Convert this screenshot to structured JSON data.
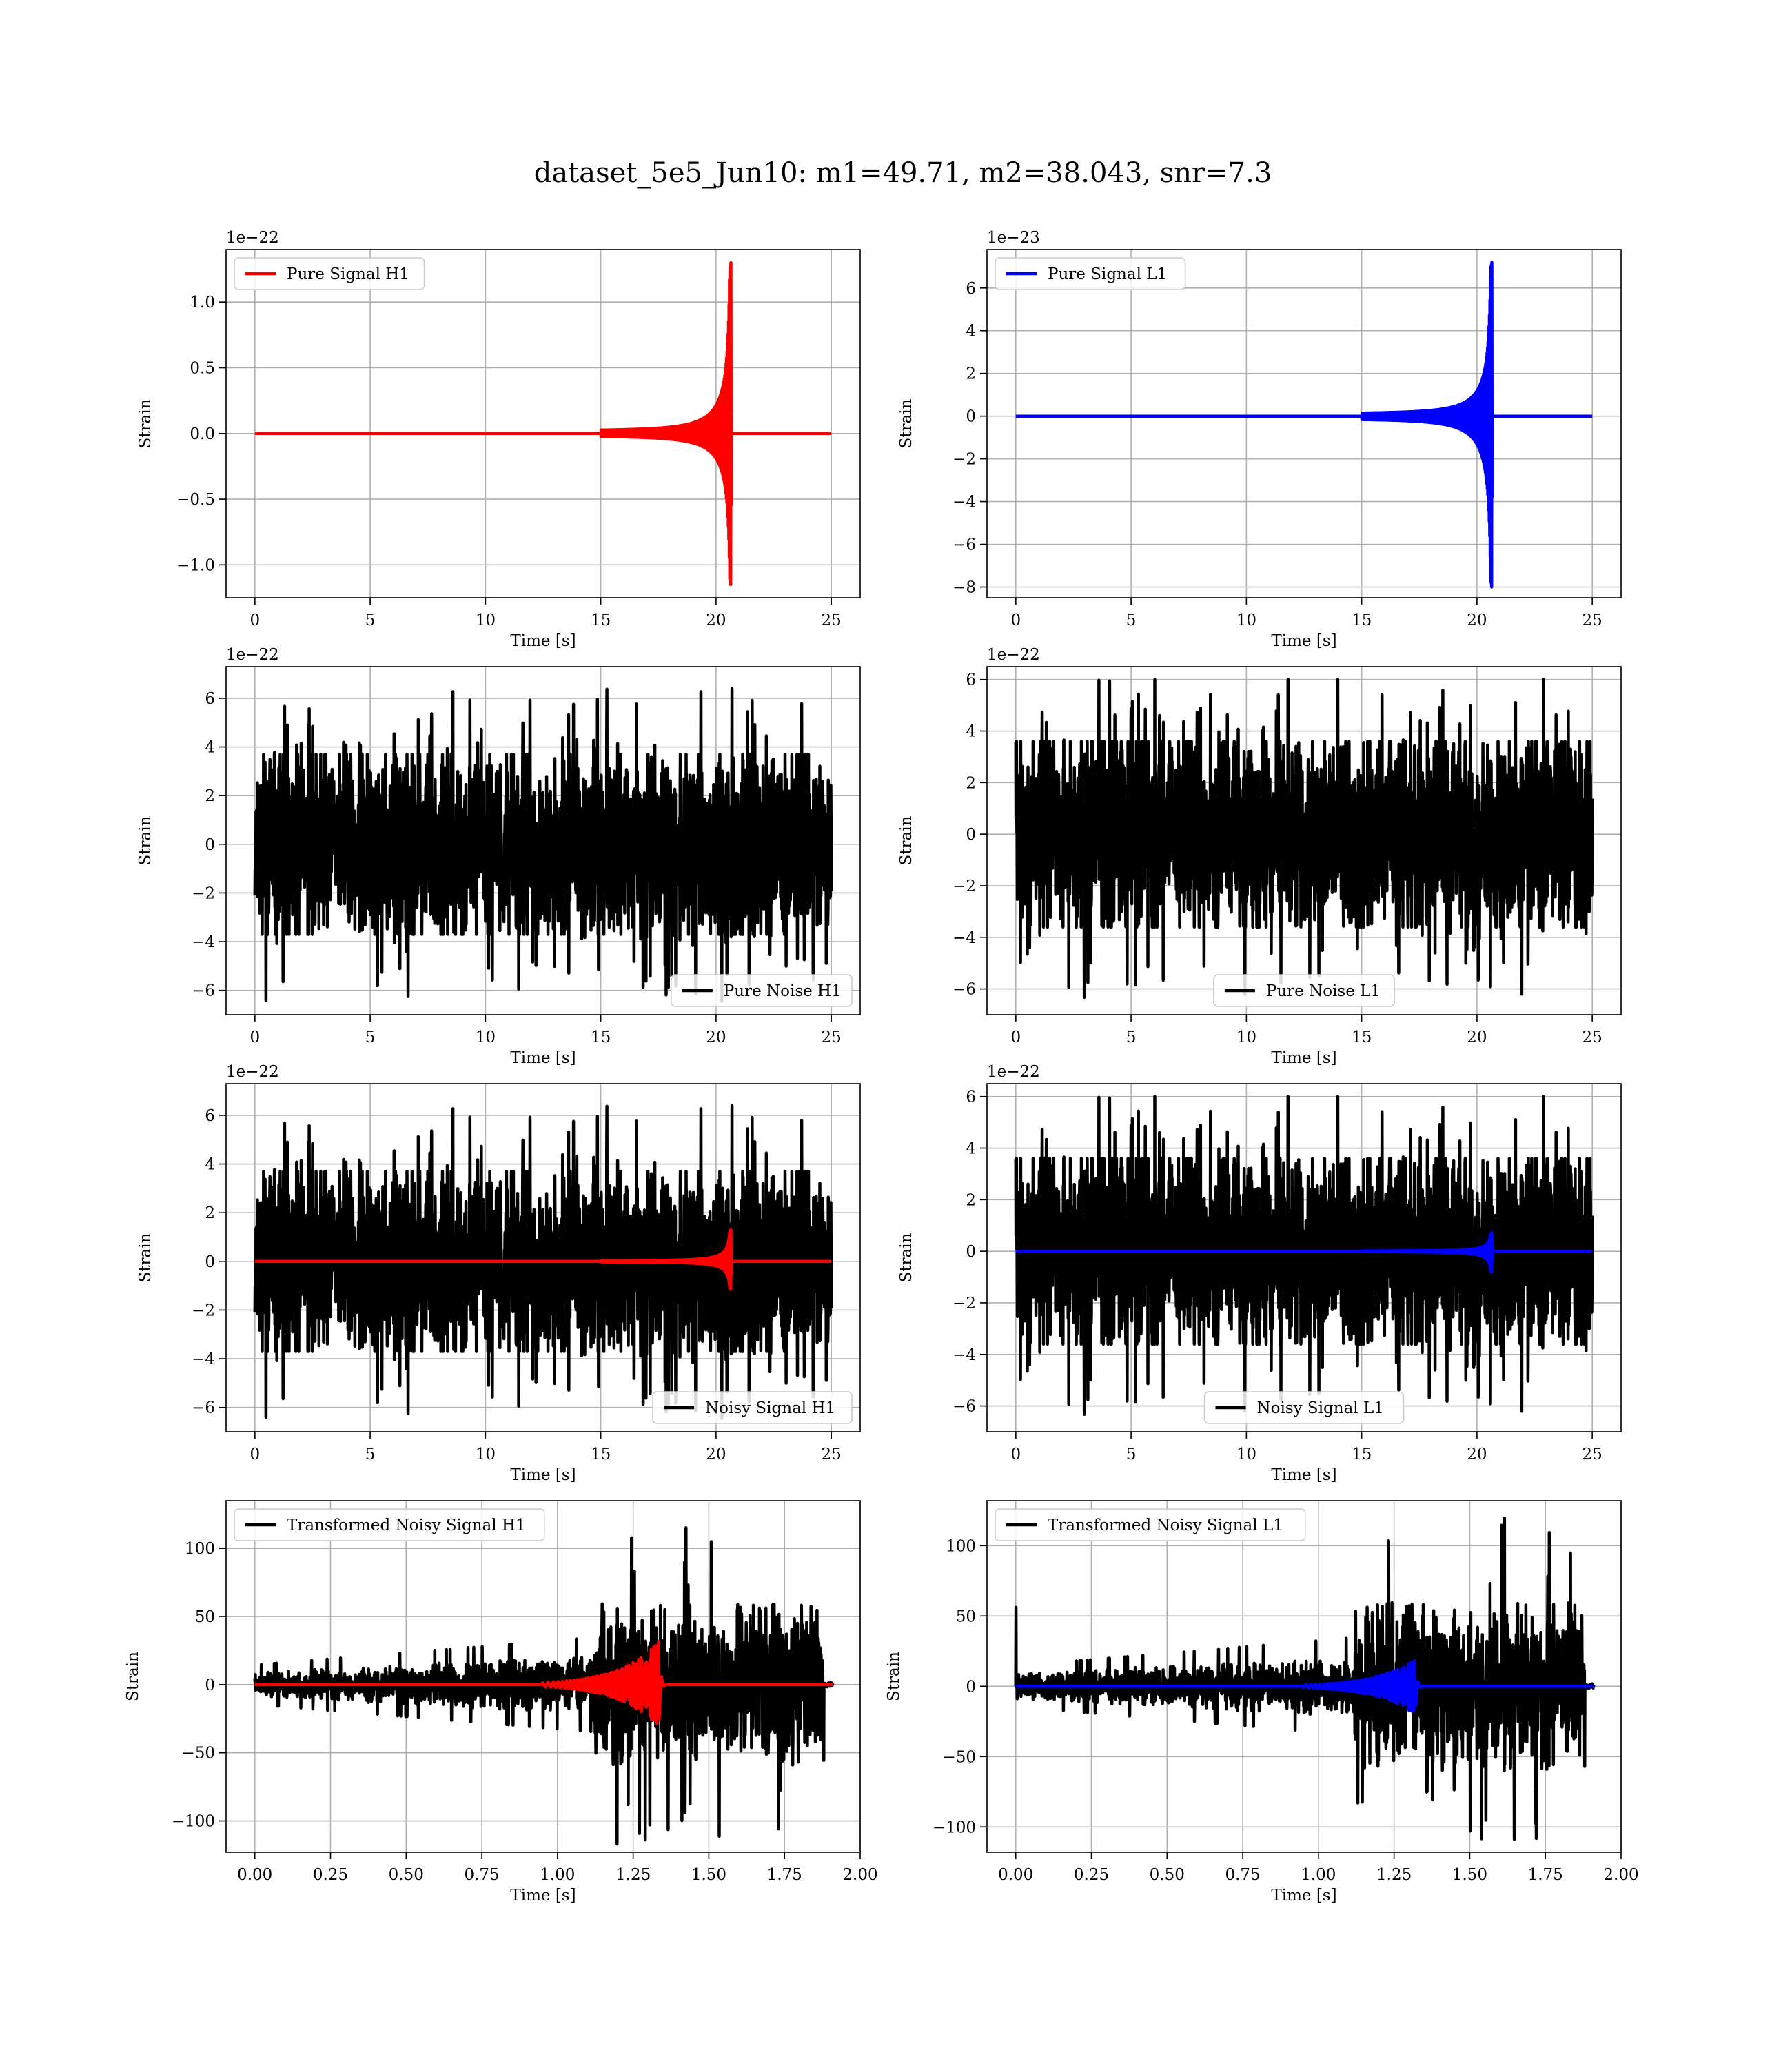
{
  "figure": {
    "title": "dataset_5e5_Jun10: m1=49.71, m2=38.043, snr=7.3"
  },
  "chart_data": [
    {
      "id": "pure-signal-h1",
      "type": "line",
      "xlabel": "Time [s]",
      "ylabel": "Strain",
      "offset_text": "1e−22",
      "xlim": [
        -1.25,
        26.25
      ],
      "ylim": [
        -1.25,
        1.4
      ],
      "xticks": [
        0,
        5,
        10,
        15,
        20,
        25
      ],
      "xtick_labels": [
        "0",
        "5",
        "10",
        "15",
        "20",
        "25"
      ],
      "yticks": [
        -1.0,
        -0.5,
        0.0,
        0.5,
        1.0
      ],
      "ytick_labels": [
        "−1.0",
        "−0.5",
        "0.0",
        "0.5",
        "1.0"
      ],
      "grid": true,
      "legend_position": "upper-left",
      "series": [
        {
          "name": "Pure Signal H1",
          "color": "#ff0000",
          "kind": "chirp",
          "x_start": 0,
          "x_end": 25,
          "merger_time": 20.65,
          "peak_positive": 1.3,
          "peak_negative": -1.15,
          "onset": 15.0
        }
      ]
    },
    {
      "id": "pure-signal-l1",
      "type": "line",
      "xlabel": "Time [s]",
      "ylabel": "Strain",
      "offset_text": "1e−23",
      "xlim": [
        -1.25,
        26.25
      ],
      "ylim": [
        -8.5,
        7.8
      ],
      "xticks": [
        0,
        5,
        10,
        15,
        20,
        25
      ],
      "xtick_labels": [
        "0",
        "5",
        "10",
        "15",
        "20",
        "25"
      ],
      "yticks": [
        -8,
        -6,
        -4,
        -2,
        0,
        2,
        4,
        6
      ],
      "ytick_labels": [
        "−8",
        "−6",
        "−4",
        "−2",
        "0",
        "2",
        "4",
        "6"
      ],
      "grid": true,
      "legend_position": "upper-left",
      "series": [
        {
          "name": "Pure Signal L1",
          "color": "#0000ff",
          "kind": "chirp",
          "x_start": 0,
          "x_end": 25,
          "merger_time": 20.65,
          "peak_positive": 7.2,
          "peak_negative": -8.0,
          "onset": 15.0
        }
      ]
    },
    {
      "id": "pure-noise-h1",
      "type": "line",
      "xlabel": "Time [s]",
      "ylabel": "Strain",
      "offset_text": "1e−22",
      "xlim": [
        -1.25,
        26.25
      ],
      "ylim": [
        -7.0,
        7.3
      ],
      "xticks": [
        0,
        5,
        10,
        15,
        20,
        25
      ],
      "xtick_labels": [
        "0",
        "5",
        "10",
        "15",
        "20",
        "25"
      ],
      "yticks": [
        -6,
        -4,
        -2,
        0,
        2,
        4,
        6
      ],
      "ytick_labels": [
        "−6",
        "−4",
        "−2",
        "0",
        "2",
        "4",
        "6"
      ],
      "grid": true,
      "legend_position": "lower-right",
      "series": [
        {
          "name": "Pure Noise H1",
          "color": "#000000",
          "kind": "noise",
          "x_start": 0,
          "x_end": 25,
          "band": 3.7,
          "max": 6.7,
          "min": -6.5,
          "seed": 11
        }
      ]
    },
    {
      "id": "pure-noise-l1",
      "type": "line",
      "xlabel": "Time [s]",
      "ylabel": "Strain",
      "offset_text": "1e−22",
      "xlim": [
        -1.25,
        26.25
      ],
      "ylim": [
        -7.0,
        6.5
      ],
      "xticks": [
        0,
        5,
        10,
        15,
        20,
        25
      ],
      "xtick_labels": [
        "0",
        "5",
        "10",
        "15",
        "20",
        "25"
      ],
      "yticks": [
        -6,
        -4,
        -2,
        0,
        2,
        4,
        6
      ],
      "ytick_labels": [
        "−6",
        "−4",
        "−2",
        "0",
        "2",
        "4",
        "6"
      ],
      "grid": true,
      "legend_position": "lower-center",
      "series": [
        {
          "name": "Pure Noise L1",
          "color": "#000000",
          "kind": "noise",
          "x_start": 0,
          "x_end": 25,
          "band": 3.6,
          "max": 6.0,
          "min": -6.4,
          "seed": 23
        }
      ]
    },
    {
      "id": "noisy-signal-h1",
      "type": "line",
      "xlabel": "Time [s]",
      "ylabel": "Strain",
      "offset_text": "1e−22",
      "xlim": [
        -1.25,
        26.25
      ],
      "ylim": [
        -7.0,
        7.3
      ],
      "xticks": [
        0,
        5,
        10,
        15,
        20,
        25
      ],
      "xtick_labels": [
        "0",
        "5",
        "10",
        "15",
        "20",
        "25"
      ],
      "yticks": [
        -6,
        -4,
        -2,
        0,
        2,
        4,
        6
      ],
      "ytick_labels": [
        "−6",
        "−4",
        "−2",
        "0",
        "2",
        "4",
        "6"
      ],
      "grid": true,
      "legend_position": "lower-right",
      "series": [
        {
          "name": "Noisy Signal H1",
          "color": "#000000",
          "kind": "noise",
          "x_start": 0,
          "x_end": 25,
          "band": 3.7,
          "max": 6.7,
          "min": -6.5,
          "seed": 11
        },
        {
          "name": "",
          "color": "#ff0000",
          "kind": "chirp",
          "x_start": 0,
          "x_end": 25,
          "merger_time": 20.65,
          "peak_positive": 1.3,
          "peak_negative": -1.15,
          "onset": 15.0
        }
      ]
    },
    {
      "id": "noisy-signal-l1",
      "type": "line",
      "xlabel": "Time [s]",
      "ylabel": "Strain",
      "offset_text": "1e−22",
      "xlim": [
        -1.25,
        26.25
      ],
      "ylim": [
        -7.0,
        6.5
      ],
      "xticks": [
        0,
        5,
        10,
        15,
        20,
        25
      ],
      "xtick_labels": [
        "0",
        "5",
        "10",
        "15",
        "20",
        "25"
      ],
      "yticks": [
        -6,
        -4,
        -2,
        0,
        2,
        4,
        6
      ],
      "ytick_labels": [
        "−6",
        "−4",
        "−2",
        "0",
        "2",
        "4",
        "6"
      ],
      "grid": true,
      "legend_position": "lower-center",
      "series": [
        {
          "name": "Noisy Signal L1",
          "color": "#000000",
          "kind": "noise",
          "x_start": 0,
          "x_end": 25,
          "band": 3.6,
          "max": 6.0,
          "min": -6.4,
          "seed": 23
        },
        {
          "name": "",
          "color": "#0000ff",
          "kind": "chirp",
          "x_start": 0,
          "x_end": 25,
          "merger_time": 20.65,
          "peak_positive": 0.72,
          "peak_negative": -0.8,
          "onset": 15.0
        }
      ]
    },
    {
      "id": "transformed-noisy-signal-h1",
      "type": "line",
      "xlabel": "Time [s]",
      "ylabel": "Strain",
      "offset_text": "",
      "xlim": [
        -0.095,
        2.0
      ],
      "ylim": [
        -123,
        135
      ],
      "xticks": [
        0.0,
        0.25,
        0.5,
        0.75,
        1.0,
        1.25,
        1.5,
        1.75,
        2.0
      ],
      "xtick_labels": [
        "0.00",
        "0.25",
        "0.50",
        "0.75",
        "1.00",
        "1.25",
        "1.50",
        "1.75",
        "2.00"
      ],
      "yticks": [
        -100,
        -50,
        0,
        50,
        100
      ],
      "ytick_labels": [
        "−100",
        "−50",
        "0",
        "50",
        "100"
      ],
      "grid": true,
      "legend_position": "upper-left",
      "series": [
        {
          "name": "Transformed Noisy Signal H1",
          "color": "#000000",
          "kind": "whitened",
          "x_start": 0,
          "x_end": 1.91,
          "jump_at": 1.12,
          "cutoff": 1.88,
          "low_band": 9,
          "high_band": 60,
          "max": 117,
          "min": -118,
          "seed": 37
        },
        {
          "name": "",
          "color": "#ff0000",
          "kind": "ringup",
          "x_start": 0,
          "x_end": 1.91,
          "merger_time": 1.335,
          "peak": 32,
          "onset": 0.95
        }
      ]
    },
    {
      "id": "transformed-noisy-signal-l1",
      "type": "line",
      "xlabel": "Time [s]",
      "ylabel": "Strain",
      "offset_text": "",
      "xlim": [
        -0.095,
        2.0
      ],
      "ylim": [
        -118,
        132
      ],
      "xticks": [
        0.0,
        0.25,
        0.5,
        0.75,
        1.0,
        1.25,
        1.5,
        1.75,
        2.0
      ],
      "xtick_labels": [
        "0.00",
        "0.25",
        "0.50",
        "0.75",
        "1.00",
        "1.25",
        "1.50",
        "1.75",
        "2.00"
      ],
      "yticks": [
        -100,
        -50,
        0,
        50,
        100
      ],
      "ytick_labels": [
        "−100",
        "−50",
        "0",
        "50",
        "100"
      ],
      "grid": true,
      "legend_position": "upper-left",
      "series": [
        {
          "name": "Transformed Noisy Signal L1",
          "color": "#000000",
          "kind": "whitened",
          "x_start": 0,
          "x_end": 1.91,
          "jump_at": 1.12,
          "cutoff": 1.88,
          "low_band": 9,
          "high_band": 60,
          "max": 121,
          "min": -112,
          "seed": 53,
          "spike_at_start": 56
        },
        {
          "name": "",
          "color": "#0000ff",
          "kind": "ringup",
          "x_start": 0,
          "x_end": 1.91,
          "merger_time": 1.32,
          "peak": 20,
          "onset": 0.95
        }
      ]
    }
  ]
}
